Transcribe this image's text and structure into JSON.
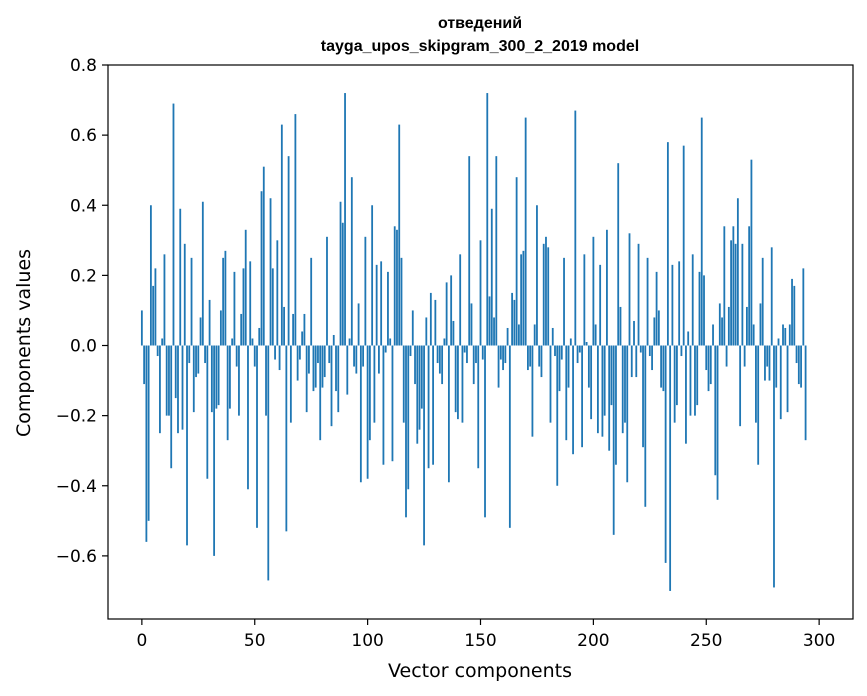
{
  "chart_data": {
    "type": "bar",
    "title": "отведений",
    "subtitle": "tayga_upos_skipgram_300_2_2019 model",
    "xlabel": "Vector components",
    "ylabel": "Components values",
    "xlim": [
      -15,
      315
    ],
    "ylim": [
      -0.78,
      0.8
    ],
    "xticks": [
      0,
      50,
      100,
      150,
      200,
      250,
      300
    ],
    "yticks": [
      -0.6,
      -0.4,
      -0.2,
      0.0,
      0.2,
      0.4,
      0.6,
      0.8
    ],
    "ytick_labels": [
      "−0.6",
      "−0.4",
      "−0.2",
      "0.0",
      "0.2",
      "0.4",
      "0.6",
      "0.8"
    ],
    "bar_color": "#1f77b4",
    "values": [
      0.1,
      -0.11,
      -0.56,
      -0.5,
      0.4,
      0.17,
      0.22,
      -0.03,
      -0.25,
      0.02,
      0.26,
      -0.2,
      -0.2,
      -0.35,
      0.69,
      -0.15,
      -0.25,
      0.39,
      -0.24,
      0.29,
      -0.57,
      -0.05,
      0.25,
      -0.19,
      -0.09,
      -0.08,
      0.08,
      0.41,
      -0.05,
      -0.38,
      0.13,
      -0.19,
      -0.6,
      -0.18,
      -0.17,
      0.1,
      0.25,
      0.27,
      -0.27,
      -0.18,
      0.02,
      0.21,
      -0.06,
      -0.2,
      0.09,
      0.22,
      0.33,
      -0.41,
      0.24,
      0.02,
      -0.06,
      -0.52,
      0.05,
      0.44,
      0.51,
      -0.2,
      -0.67,
      0.42,
      0.22,
      -0.04,
      0.3,
      -0.07,
      0.63,
      0.11,
      -0.53,
      0.54,
      -0.22,
      0.09,
      0.66,
      -0.1,
      -0.04,
      0.04,
      0.09,
      -0.19,
      -0.08,
      0.25,
      -0.13,
      -0.12,
      -0.05,
      -0.27,
      -0.12,
      -0.09,
      0.31,
      -0.05,
      -0.23,
      0.03,
      -0.13,
      -0.19,
      0.41,
      0.35,
      0.72,
      -0.14,
      0.02,
      0.48,
      -0.06,
      -0.08,
      0.12,
      -0.39,
      -0.06,
      0.31,
      -0.38,
      -0.27,
      0.4,
      -0.22,
      0.23,
      -0.08,
      0.24,
      -0.34,
      -0.02,
      0.21,
      0.02,
      -0.33,
      0.34,
      0.33,
      0.63,
      0.25,
      -0.22,
      -0.49,
      -0.41,
      -0.03,
      0.1,
      -0.11,
      -0.28,
      -0.24,
      -0.18,
      -0.57,
      0.08,
      -0.35,
      0.15,
      -0.34,
      0.13,
      -0.05,
      -0.08,
      -0.11,
      0.02,
      0.18,
      -0.39,
      0.2,
      0.07,
      -0.19,
      -0.21,
      0.26,
      -0.22,
      -0.02,
      -0.05,
      0.54,
      0.12,
      -0.11,
      -0.05,
      -0.35,
      0.3,
      -0.04,
      -0.49,
      0.72,
      0.14,
      0.39,
      0.08,
      0.54,
      -0.12,
      -0.04,
      -0.07,
      -0.05,
      0.05,
      -0.52,
      0.15,
      0.13,
      0.48,
      0.06,
      0.26,
      0.27,
      0.65,
      -0.07,
      -0.06,
      -0.26,
      0.06,
      0.4,
      -0.06,
      -0.09,
      0.29,
      0.31,
      0.28,
      -0.22,
      0.05,
      -0.03,
      -0.4,
      -0.13,
      -0.04,
      0.25,
      -0.27,
      -0.12,
      0.02,
      -0.31,
      0.67,
      -0.05,
      -0.02,
      -0.29,
      0.26,
      0.01,
      -0.12,
      -0.21,
      0.31,
      0.06,
      -0.25,
      0.23,
      -0.26,
      -0.2,
      0.33,
      -0.3,
      -0.17,
      -0.54,
      -0.34,
      0.52,
      0.11,
      -0.25,
      -0.22,
      -0.39,
      0.32,
      -0.09,
      0.07,
      -0.09,
      0.29,
      -0.02,
      -0.29,
      -0.46,
      0.25,
      -0.03,
      -0.07,
      0.08,
      0.21,
      0.1,
      -0.12,
      -0.13,
      -0.62,
      0.58,
      -0.7,
      0.23,
      -0.22,
      -0.17,
      0.24,
      -0.03,
      0.57,
      -0.28,
      0.04,
      -0.2,
      0.26,
      -0.2,
      -0.17,
      0.21,
      0.65,
      0.2,
      -0.07,
      -0.13,
      -0.11,
      0.06,
      -0.37,
      -0.44,
      0.12,
      0.08,
      0.34,
      -0.06,
      0.11,
      0.3,
      0.34,
      0.29,
      0.42,
      -0.23,
      0.29,
      -0.06,
      0.11,
      0.34,
      0.53,
      0.06,
      -0.22,
      -0.34,
      0.12,
      0.25,
      -0.1,
      -0.06,
      -0.1,
      0.28,
      -0.69,
      -0.12,
      0.02,
      -0.21,
      0.06,
      0.05,
      -0.19,
      0.06,
      0.19,
      0.17,
      -0.05,
      -0.11,
      -0.12,
      0.22,
      -0.27
    ]
  }
}
